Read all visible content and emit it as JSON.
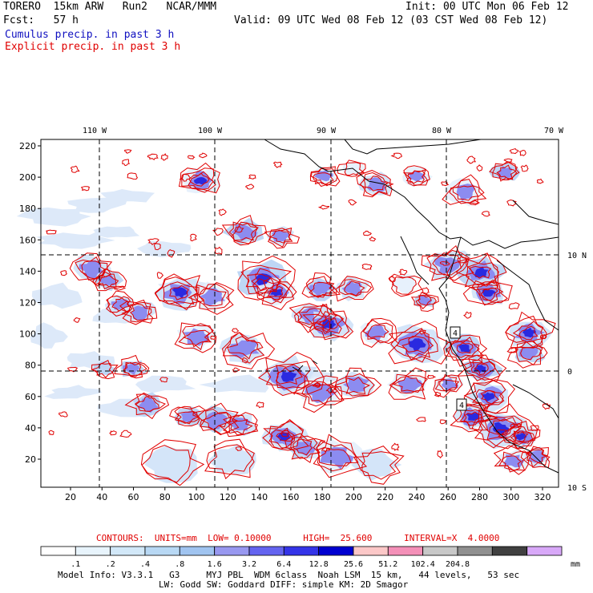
{
  "header": {
    "model_line": "TORERO  15km ARW   Run2   NCAR/MMM",
    "init_line": "Init: 00 UTC Mon 06 Feb 12",
    "fcst_line": "Fcst:   57 h",
    "valid_line": "Valid: 09 UTC Wed 08 Feb 12 (03 CST Wed 08 Feb 12)",
    "cumulus_label": "Cumulus precip. in past 3 h",
    "explicit_label": "Explicit precip. in past 3 h"
  },
  "colors": {
    "cumulus": "#1010c0",
    "explicit": "#e00000",
    "coast": "#000000",
    "grid": "#000000"
  },
  "map": {
    "lon_labels": [
      "110 W",
      "100 W",
      "90 W",
      "80 W",
      "70 W"
    ],
    "lat_labels": [
      "10 N",
      "0",
      "10 S"
    ],
    "y_ticks": [
      "220",
      "200",
      "180",
      "160",
      "140",
      "120",
      "100",
      "80",
      "60",
      "40",
      "20"
    ],
    "x_ticks": [
      "20",
      "40",
      "60",
      "80",
      "100",
      "120",
      "140",
      "160",
      "180",
      "200",
      "220",
      "240",
      "260",
      "280",
      "300",
      "320"
    ],
    "contour_box_labels": [
      "4",
      "4"
    ]
  },
  "contour_info": "CONTOURS:  UNITS=mm  LOW= 0.10000      HIGH=  25.600      INTERVAL=X  4.0000",
  "legend": {
    "values": [
      ".1",
      ".2",
      ".4",
      ".8",
      "1.6",
      "3.2",
      "6.4",
      "12.8",
      "25.6",
      "51.2",
      "102.4",
      "204.8"
    ],
    "unit": "mm",
    "colors": [
      "#ffffff",
      "#e8f4fc",
      "#d2e8f8",
      "#b8d8f4",
      "#a0c4f0",
      "#9898f0",
      "#6464f0",
      "#3434e8",
      "#0000d0",
      "#fcc8c8",
      "#f490b8",
      "#c8c8c8",
      "#909090",
      "#404040",
      "#d8a8f8"
    ]
  },
  "footer": {
    "line1": "Model Info: V3.3.1   G3     MYJ PBL  WDM 6class  Noah LSM  15 km,   44 levels,   53 sec",
    "line2": "LW: Godd SW: Goddard DIFF: simple KM: 2D Smagor"
  }
}
